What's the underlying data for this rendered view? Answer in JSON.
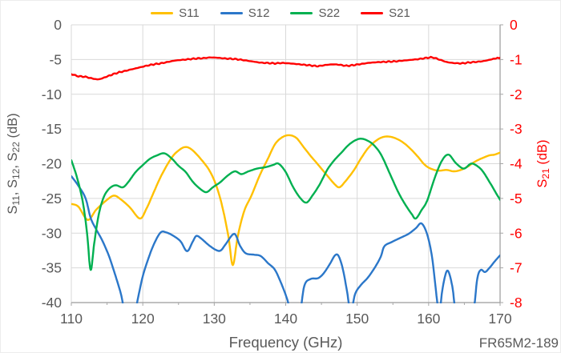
{
  "chart_data": {
    "type": "line",
    "title": "",
    "annotation": "FR65M2-189",
    "x_axis": {
      "label": "Frequency (GHz)",
      "min": 110,
      "max": 170,
      "major_tick": 10,
      "minor_tick": 5,
      "tick_labels": [
        110,
        120,
        130,
        140,
        150,
        160,
        170
      ]
    },
    "y_axis_left": {
      "label_text": "S11, S12, S22 (dB)",
      "label_segments": [
        {
          "t": "S"
        },
        {
          "t": "11",
          "sub": true
        },
        {
          "t": ", S"
        },
        {
          "t": "12",
          "sub": true
        },
        {
          "t": ", S"
        },
        {
          "t": "22",
          "sub": true
        },
        {
          "t": " (dB)"
        }
      ],
      "min": -40,
      "max": 0,
      "step": 5,
      "tick_labels": [
        0,
        -5,
        -10,
        -15,
        -20,
        -25,
        -30,
        -35,
        -40
      ],
      "color": "#595959"
    },
    "y_axis_right": {
      "label_text": "S21 (dB)",
      "label_segments": [
        {
          "t": "S"
        },
        {
          "t": "21",
          "sub": true
        },
        {
          "t": " (dB)"
        }
      ],
      "min": -8,
      "max": 0,
      "step": 1,
      "tick_labels": [
        0,
        -1,
        -2,
        -3,
        -4,
        -5,
        -6,
        -7,
        -8
      ],
      "color": "#FF0000"
    },
    "grid": true,
    "legend_position": "top",
    "series": [
      {
        "name": "S11",
        "color": "#FFC000",
        "axis": "left",
        "render": "smooth",
        "points": [
          [
            110,
            -25.8
          ],
          [
            111,
            -26.2
          ],
          [
            112.3,
            -28.1
          ],
          [
            113.5,
            -26.6
          ],
          [
            115,
            -25.2
          ],
          [
            116,
            -24.6
          ],
          [
            117,
            -25.2
          ],
          [
            118.2,
            -26.3
          ],
          [
            119.6,
            -27.9
          ],
          [
            120.5,
            -26.5
          ],
          [
            121.5,
            -24.2
          ],
          [
            122.6,
            -21.7
          ],
          [
            124,
            -19.2
          ],
          [
            125,
            -18.1
          ],
          [
            126,
            -17.6
          ],
          [
            127,
            -18.1
          ],
          [
            128.5,
            -19.8
          ],
          [
            129.5,
            -21.3
          ],
          [
            130.4,
            -23.5
          ],
          [
            131.2,
            -26.5
          ],
          [
            132,
            -30.6
          ],
          [
            132.6,
            -34.6
          ],
          [
            133.3,
            -30.4
          ],
          [
            134.2,
            -26.8
          ],
          [
            135.2,
            -24.6
          ],
          [
            136.4,
            -21.6
          ],
          [
            137.5,
            -19.3
          ],
          [
            138.5,
            -17.2
          ],
          [
            139.5,
            -16.2
          ],
          [
            140.5,
            -15.9
          ],
          [
            141.5,
            -16.3
          ],
          [
            142.5,
            -17.6
          ],
          [
            143.5,
            -18.9
          ],
          [
            144.5,
            -20.1
          ],
          [
            145.8,
            -21.7
          ],
          [
            146.8,
            -22.9
          ],
          [
            147.5,
            -23.4
          ],
          [
            148.3,
            -22.6
          ],
          [
            149.5,
            -21
          ],
          [
            150.5,
            -19.3
          ],
          [
            151.5,
            -17.8
          ],
          [
            152.5,
            -16.8
          ],
          [
            153.5,
            -16.2
          ],
          [
            154.5,
            -16.1
          ],
          [
            155.5,
            -16.4
          ],
          [
            156.5,
            -17
          ],
          [
            157.5,
            -17.9
          ],
          [
            158.5,
            -19
          ],
          [
            159.5,
            -20.2
          ],
          [
            160.5,
            -20.8
          ],
          [
            161.5,
            -21
          ],
          [
            162.5,
            -20.9
          ],
          [
            163.5,
            -21.1
          ],
          [
            164.5,
            -20.9
          ],
          [
            165.5,
            -20.4
          ],
          [
            166.5,
            -19.7
          ],
          [
            167.5,
            -19.2
          ],
          [
            168.5,
            -18.8
          ],
          [
            169.2,
            -18.7
          ],
          [
            170,
            -18.4
          ]
        ]
      },
      {
        "name": "S12",
        "color": "#2B77C9",
        "axis": "left",
        "render": "smooth",
        "points": [
          [
            110,
            -21.8
          ],
          [
            111,
            -23.2
          ],
          [
            112,
            -25
          ],
          [
            112.7,
            -27.8
          ],
          [
            113.5,
            -29.5
          ],
          [
            114.4,
            -31.2
          ],
          [
            115.3,
            -33.4
          ],
          [
            116.2,
            -36.2
          ],
          [
            117,
            -39
          ],
          [
            117.6,
            -42
          ],
          [
            118.8,
            -42
          ],
          [
            119.3,
            -39.5
          ],
          [
            120,
            -36.2
          ],
          [
            120.8,
            -33.6
          ],
          [
            121.6,
            -31.5
          ],
          [
            122.5,
            -29.9
          ],
          [
            123.3,
            -29.9
          ],
          [
            124.3,
            -30.4
          ],
          [
            125.3,
            -31.2
          ],
          [
            126.2,
            -32.6
          ],
          [
            127,
            -31.2
          ],
          [
            127.5,
            -30.4
          ],
          [
            128.2,
            -30.8
          ],
          [
            129.2,
            -31.7
          ],
          [
            130.2,
            -32.4
          ],
          [
            130.9,
            -32.5
          ],
          [
            131.6,
            -31.6
          ],
          [
            132.8,
            -30.1
          ],
          [
            133.6,
            -31.8
          ],
          [
            134.4,
            -32.9
          ],
          [
            135.5,
            -33.1
          ],
          [
            136.5,
            -33.3
          ],
          [
            137.5,
            -34.3
          ],
          [
            138.5,
            -35.3
          ],
          [
            139.4,
            -37.3
          ],
          [
            140.2,
            -39.5
          ],
          [
            140.9,
            -42
          ],
          [
            141.9,
            -42
          ],
          [
            142.6,
            -37.6
          ],
          [
            143.5,
            -36.6
          ],
          [
            144.5,
            -36.5
          ],
          [
            145.3,
            -35.8
          ],
          [
            146.2,
            -34.4
          ],
          [
            146.9,
            -33.2
          ],
          [
            147.4,
            -33.3
          ],
          [
            148,
            -35.2
          ],
          [
            148.6,
            -38.5
          ],
          [
            149.1,
            -41.5
          ],
          [
            149.7,
            -38.8
          ],
          [
            150.5,
            -37.5
          ],
          [
            151.5,
            -36.4
          ],
          [
            152.5,
            -34.9
          ],
          [
            153.3,
            -33.4
          ],
          [
            153.8,
            -31.9
          ],
          [
            154.8,
            -31.3
          ],
          [
            156,
            -30.7
          ],
          [
            157.2,
            -30.1
          ],
          [
            158.2,
            -29.3
          ],
          [
            159,
            -28.6
          ],
          [
            159.8,
            -30.2
          ],
          [
            160.5,
            -33.6
          ],
          [
            161.1,
            -39
          ],
          [
            161.5,
            -42
          ],
          [
            161.9,
            -38.3
          ],
          [
            162.6,
            -35.4
          ],
          [
            163.3,
            -37.6
          ],
          [
            163.9,
            -42
          ],
          [
            165,
            -43
          ],
          [
            166.2,
            -41.5
          ],
          [
            166.8,
            -36.6
          ],
          [
            167.3,
            -35.3
          ],
          [
            167.9,
            -35.6
          ],
          [
            168.6,
            -34.9
          ],
          [
            169.3,
            -34
          ],
          [
            170,
            -33.2
          ]
        ]
      },
      {
        "name": "S22",
        "color": "#00B050",
        "axis": "left",
        "render": "smooth",
        "points": [
          [
            110,
            -19.5
          ],
          [
            110.8,
            -22
          ],
          [
            111.6,
            -25.5
          ],
          [
            112.2,
            -30
          ],
          [
            112.7,
            -35.3
          ],
          [
            113.2,
            -31.5
          ],
          [
            113.8,
            -27.5
          ],
          [
            114.5,
            -24.9
          ],
          [
            115.3,
            -23.6
          ],
          [
            116.2,
            -23.1
          ],
          [
            117.2,
            -23.4
          ],
          [
            118,
            -22.6
          ],
          [
            119,
            -21.2
          ],
          [
            120,
            -20.2
          ],
          [
            121,
            -19.3
          ],
          [
            122,
            -18.8
          ],
          [
            123,
            -18.5
          ],
          [
            124,
            -19.2
          ],
          [
            125,
            -20.3
          ],
          [
            126,
            -21.2
          ],
          [
            127,
            -22.6
          ],
          [
            128,
            -23.6
          ],
          [
            128.9,
            -24.1
          ],
          [
            129.8,
            -23.4
          ],
          [
            130.8,
            -22.7
          ],
          [
            131.9,
            -21.7
          ],
          [
            132.9,
            -21.1
          ],
          [
            133.8,
            -21.5
          ],
          [
            134.8,
            -21.1
          ],
          [
            136,
            -20.7
          ],
          [
            137.2,
            -20.5
          ],
          [
            138.2,
            -20.2
          ],
          [
            139,
            -20
          ],
          [
            140,
            -21.2
          ],
          [
            141,
            -23.3
          ],
          [
            142,
            -24.9
          ],
          [
            142.9,
            -25.6
          ],
          [
            143.8,
            -24.5
          ],
          [
            144.8,
            -22.9
          ],
          [
            145.8,
            -20.9
          ],
          [
            146.8,
            -19.5
          ],
          [
            147.8,
            -18.4
          ],
          [
            148.8,
            -17.3
          ],
          [
            149.8,
            -16.6
          ],
          [
            150.6,
            -16.4
          ],
          [
            151.5,
            -16.7
          ],
          [
            152.4,
            -17.4
          ],
          [
            153.4,
            -18.8
          ],
          [
            154.6,
            -21.5
          ],
          [
            155.8,
            -24.2
          ],
          [
            156.8,
            -26
          ],
          [
            157.6,
            -27.2
          ],
          [
            158.2,
            -27.9
          ],
          [
            159,
            -26.7
          ],
          [
            159.8,
            -25.3
          ],
          [
            160.9,
            -21.9
          ],
          [
            161.9,
            -19.5
          ],
          [
            162.8,
            -18.7
          ],
          [
            163.8,
            -19.9
          ],
          [
            164.9,
            -20.7
          ],
          [
            165.9,
            -20
          ],
          [
            166.6,
            -20.2
          ],
          [
            167.5,
            -21
          ],
          [
            168.5,
            -22.6
          ],
          [
            169.3,
            -24
          ],
          [
            170,
            -25.2
          ]
        ]
      },
      {
        "name": "S21",
        "color": "#FF0000",
        "axis": "right",
        "render": "noisy",
        "points": [
          [
            110,
            -1.42
          ],
          [
            111,
            -1.48
          ],
          [
            112,
            -1.5
          ],
          [
            113,
            -1.55
          ],
          [
            113.8,
            -1.57
          ],
          [
            114.6,
            -1.52
          ],
          [
            115.5,
            -1.45
          ],
          [
            116.5,
            -1.38
          ],
          [
            117.5,
            -1.33
          ],
          [
            118.5,
            -1.28
          ],
          [
            119.5,
            -1.23
          ],
          [
            120.5,
            -1.18
          ],
          [
            121.5,
            -1.14
          ],
          [
            122.5,
            -1.11
          ],
          [
            123.5,
            -1.07
          ],
          [
            124.5,
            -1.03
          ],
          [
            125.5,
            -1.01
          ],
          [
            126.5,
            -0.99
          ],
          [
            127.5,
            -0.97
          ],
          [
            128.5,
            -0.96
          ],
          [
            129.5,
            -0.94
          ],
          [
            130.5,
            -0.95
          ],
          [
            131.5,
            -0.97
          ],
          [
            132.5,
            -0.98
          ],
          [
            133.5,
            -1
          ],
          [
            134.5,
            -1.03
          ],
          [
            135.5,
            -1.06
          ],
          [
            136.5,
            -1.09
          ],
          [
            137.5,
            -1.1
          ],
          [
            138.5,
            -1.11
          ],
          [
            139.5,
            -1.1
          ],
          [
            140.5,
            -1.11
          ],
          [
            141.5,
            -1.13
          ],
          [
            142.5,
            -1.15
          ],
          [
            143.5,
            -1.17
          ],
          [
            144.5,
            -1.19
          ],
          [
            145.5,
            -1.16
          ],
          [
            146.5,
            -1.14
          ],
          [
            147.5,
            -1.15
          ],
          [
            148.5,
            -1.18
          ],
          [
            149.5,
            -1.16
          ],
          [
            150.5,
            -1.13
          ],
          [
            151.5,
            -1.1
          ],
          [
            152.5,
            -1.08
          ],
          [
            153.5,
            -1.07
          ],
          [
            154.5,
            -1.06
          ],
          [
            155.5,
            -1.05
          ],
          [
            156.5,
            -1.03
          ],
          [
            157.5,
            -1.01
          ],
          [
            158.5,
            -0.99
          ],
          [
            159.5,
            -0.96
          ],
          [
            160.5,
            -0.94
          ],
          [
            161.5,
            -1
          ],
          [
            162.5,
            -1.07
          ],
          [
            163.5,
            -1.1
          ],
          [
            164.5,
            -1.11
          ],
          [
            165.5,
            -1.09
          ],
          [
            166.5,
            -1.07
          ],
          [
            167.5,
            -1.05
          ],
          [
            168.5,
            -1.01
          ],
          [
            169.3,
            -0.97
          ],
          [
            170,
            -0.95
          ]
        ]
      }
    ],
    "colors": {
      "tick_text": "#595959",
      "gridline": "#D9D9D9",
      "axis_line": "#A6A6A6"
    }
  }
}
